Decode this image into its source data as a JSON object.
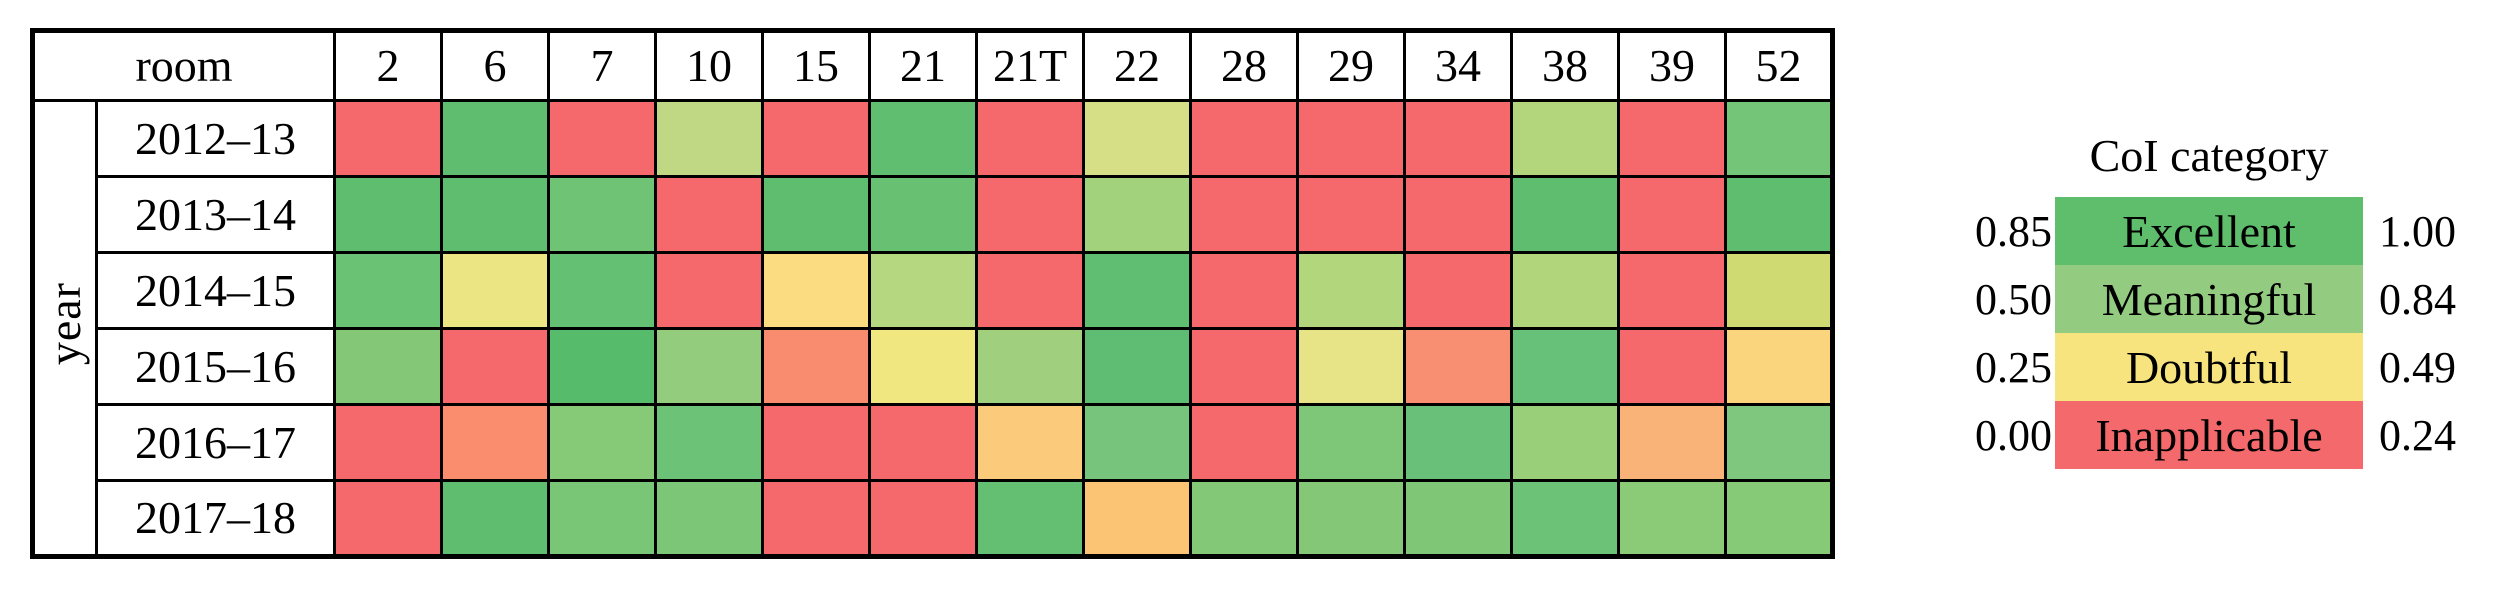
{
  "table": {
    "corner_label": "room",
    "axis_label": "year",
    "columns": [
      "2",
      "6",
      "7",
      "10",
      "15",
      "21",
      "21T",
      "22",
      "28",
      "29",
      "34",
      "38",
      "39",
      "52"
    ],
    "rows": [
      {
        "label": "2012–13",
        "colors": [
          "#f5686c",
          "#5ebd6e",
          "#f5686c",
          "#c0d884",
          "#f5686c",
          "#60be70",
          "#f5686c",
          "#d6de86",
          "#f5686c",
          "#f5686c",
          "#f5686c",
          "#b3d67c",
          "#f5686c",
          "#74c578"
        ]
      },
      {
        "label": "2013–14",
        "colors": [
          "#5ebd6e",
          "#5ebd6e",
          "#6ec375",
          "#f5686c",
          "#5ebd6e",
          "#68c173",
          "#f5686c",
          "#a2d27b",
          "#f5686c",
          "#f5686c",
          "#f5686c",
          "#5ebd6e",
          "#f5686c",
          "#5ebd6e"
        ]
      },
      {
        "label": "2014–15",
        "colors": [
          "#6ac274",
          "#ece584",
          "#64c072",
          "#f5686c",
          "#fbdc80",
          "#b5d77f",
          "#f5686c",
          "#60be72",
          "#f5686c",
          "#b2d67b",
          "#f5686c",
          "#b0d57b",
          "#f5686c",
          "#cfda72"
        ]
      },
      {
        "label": "2015–16",
        "colors": [
          "#84c877",
          "#f5686c",
          "#57bb6c",
          "#93cc7d",
          "#f98c6f",
          "#f1e780",
          "#a0d07e",
          "#5ebd72",
          "#f5686c",
          "#e7e488",
          "#f98f72",
          "#68c178",
          "#f5686c",
          "#fbd47e"
        ]
      },
      {
        "label": "2016–17",
        "colors": [
          "#f5686c",
          "#f98d6d",
          "#86c977",
          "#6cc276",
          "#f5686c",
          "#f5686c",
          "#fbcb7b",
          "#77c57c",
          "#f5686c",
          "#7ec778",
          "#69c179",
          "#99cf79",
          "#f9b277",
          "#7fc67e"
        ]
      },
      {
        "label": "2017–18",
        "colors": [
          "#f5686c",
          "#5ebd6f",
          "#79c676",
          "#7cc677",
          "#f5686c",
          "#f5686c",
          "#64bf73",
          "#fbc374",
          "#82c877",
          "#84c877",
          "#7fc777",
          "#6cc276",
          "#8bca77",
          "#86c977"
        ]
      }
    ]
  },
  "legend": {
    "title": "CoI category",
    "entries": [
      {
        "min": "0.85",
        "label": "Excellent",
        "max": "1.00",
        "color": "#5fbe6c"
      },
      {
        "min": "0.50",
        "label": "Meaningful",
        "max": "0.84",
        "color": "#93cc80"
      },
      {
        "min": "0.25",
        "label": "Doubtful",
        "max": "0.49",
        "color": "#f8e47e"
      },
      {
        "min": "0.00",
        "label": "Inapplicable",
        "max": "0.24",
        "color": "#f4696b"
      }
    ]
  },
  "chart_data": {
    "type": "heatmap",
    "title": "",
    "xlabel": "room",
    "ylabel": "year",
    "x_categories": [
      "2",
      "6",
      "7",
      "10",
      "15",
      "21",
      "21T",
      "22",
      "28",
      "29",
      "34",
      "38",
      "39",
      "52"
    ],
    "y_categories": [
      "2012–13",
      "2013–14",
      "2014–15",
      "2015–16",
      "2016–17",
      "2017–18"
    ],
    "legend_title": "CoI category",
    "legend_bins": [
      {
        "label": "Excellent",
        "range": [
          0.85,
          1.0
        ],
        "color": "#5fbe6c"
      },
      {
        "label": "Meaningful",
        "range": [
          0.5,
          0.84
        ],
        "color": "#93cc80"
      },
      {
        "label": "Doubtful",
        "range": [
          0.25,
          0.49
        ],
        "color": "#f8e47e"
      },
      {
        "label": "Inapplicable",
        "range": [
          0.0,
          0.24
        ],
        "color": "#f4696b"
      }
    ],
    "cell_colors": [
      [
        "#f5686c",
        "#5ebd6e",
        "#f5686c",
        "#c0d884",
        "#f5686c",
        "#60be70",
        "#f5686c",
        "#d6de86",
        "#f5686c",
        "#f5686c",
        "#f5686c",
        "#b3d67c",
        "#f5686c",
        "#74c578"
      ],
      [
        "#5ebd6e",
        "#5ebd6e",
        "#6ec375",
        "#f5686c",
        "#5ebd6e",
        "#68c173",
        "#f5686c",
        "#a2d27b",
        "#f5686c",
        "#f5686c",
        "#f5686c",
        "#5ebd6e",
        "#f5686c",
        "#5ebd6e"
      ],
      [
        "#6ac274",
        "#ece584",
        "#64c072",
        "#f5686c",
        "#fbdc80",
        "#b5d77f",
        "#f5686c",
        "#60be72",
        "#f5686c",
        "#b2d67b",
        "#f5686c",
        "#b0d57b",
        "#f5686c",
        "#cfda72"
      ],
      [
        "#84c877",
        "#f5686c",
        "#57bb6c",
        "#93cc7d",
        "#f98c6f",
        "#f1e780",
        "#a0d07e",
        "#5ebd72",
        "#f5686c",
        "#e7e488",
        "#f98f72",
        "#68c178",
        "#f5686c",
        "#fbd47e"
      ],
      [
        "#f5686c",
        "#f98d6d",
        "#86c977",
        "#6cc276",
        "#f5686c",
        "#f5686c",
        "#fbcb7b",
        "#77c57c",
        "#f5686c",
        "#7ec778",
        "#69c179",
        "#99cf79",
        "#f9b277",
        "#7fc67e"
      ],
      [
        "#f5686c",
        "#5ebd6f",
        "#79c676",
        "#7cc677",
        "#f5686c",
        "#f5686c",
        "#64bf73",
        "#fbc374",
        "#82c877",
        "#84c877",
        "#7fc777",
        "#6cc276",
        "#8bca77",
        "#86c977"
      ]
    ],
    "cell_categories": [
      [
        "Inapplicable",
        "Excellent",
        "Inapplicable",
        "Meaningful",
        "Inapplicable",
        "Excellent",
        "Inapplicable",
        "Doubtful",
        "Inapplicable",
        "Inapplicable",
        "Inapplicable",
        "Meaningful",
        "Inapplicable",
        "Excellent"
      ],
      [
        "Excellent",
        "Excellent",
        "Excellent",
        "Inapplicable",
        "Excellent",
        "Excellent",
        "Inapplicable",
        "Meaningful",
        "Inapplicable",
        "Inapplicable",
        "Inapplicable",
        "Excellent",
        "Inapplicable",
        "Excellent"
      ],
      [
        "Excellent",
        "Doubtful",
        "Excellent",
        "Inapplicable",
        "Doubtful",
        "Meaningful",
        "Inapplicable",
        "Excellent",
        "Inapplicable",
        "Meaningful",
        "Inapplicable",
        "Meaningful",
        "Inapplicable",
        "Doubtful"
      ],
      [
        "Meaningful",
        "Inapplicable",
        "Excellent",
        "Meaningful",
        "Inapplicable",
        "Doubtful",
        "Meaningful",
        "Excellent",
        "Inapplicable",
        "Doubtful",
        "Inapplicable",
        "Excellent",
        "Inapplicable",
        "Doubtful"
      ],
      [
        "Inapplicable",
        "Inapplicable",
        "Meaningful",
        "Excellent",
        "Inapplicable",
        "Inapplicable",
        "Doubtful",
        "Excellent",
        "Inapplicable",
        "Excellent",
        "Excellent",
        "Meaningful",
        "Doubtful",
        "Excellent"
      ],
      [
        "Inapplicable",
        "Excellent",
        "Excellent",
        "Excellent",
        "Inapplicable",
        "Inapplicable",
        "Excellent",
        "Doubtful",
        "Meaningful",
        "Meaningful",
        "Meaningful",
        "Excellent",
        "Meaningful",
        "Meaningful"
      ]
    ],
    "grid": true,
    "legend_position": "right"
  }
}
